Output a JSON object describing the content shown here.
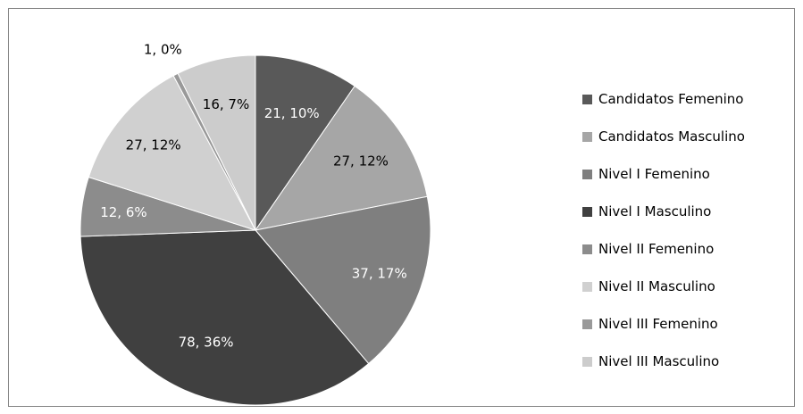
{
  "chart_data": {
    "type": "pie",
    "slices": [
      {
        "name": "Candidatos Femenino",
        "value": 21,
        "percent": "10%",
        "label": "21, 10%",
        "color": "#595959",
        "label_color": "#ffffff"
      },
      {
        "name": "Candidatos Masculino",
        "value": 27,
        "percent": "12%",
        "label": "27, 12%",
        "color": "#a6a6a6",
        "label_color": "#000000"
      },
      {
        "name": "Nivel I Femenino",
        "value": 37,
        "percent": "17%",
        "label": "37, 17%",
        "color": "#7f7f7f",
        "label_color": "#ffffff"
      },
      {
        "name": "Nivel I Masculino",
        "value": 78,
        "percent": "36%",
        "label": "78, 36%",
        "color": "#404040",
        "label_color": "#ffffff"
      },
      {
        "name": "Nivel II Femenino",
        "value": 12,
        "percent": "6%",
        "label": "12, 6%",
        "color": "#8c8c8c",
        "label_color": "#ffffff"
      },
      {
        "name": "Nivel II Masculino",
        "value": 27,
        "percent": "12%",
        "label": "27, 12%",
        "color": "#d0d0d0",
        "label_color": "#000000"
      },
      {
        "name": "Nivel III Femenino",
        "value": 1,
        "percent": "0%",
        "label": "1, 0%",
        "color": "#999999",
        "label_color": "#000000"
      },
      {
        "name": "Nivel III Masculino",
        "value": 16,
        "percent": "7%",
        "label": "16, 7%",
        "color": "#cccccc",
        "label_color": "#000000"
      }
    ],
    "legend_position": "right",
    "start_angle": "top (12 o'clock), clockwise"
  }
}
